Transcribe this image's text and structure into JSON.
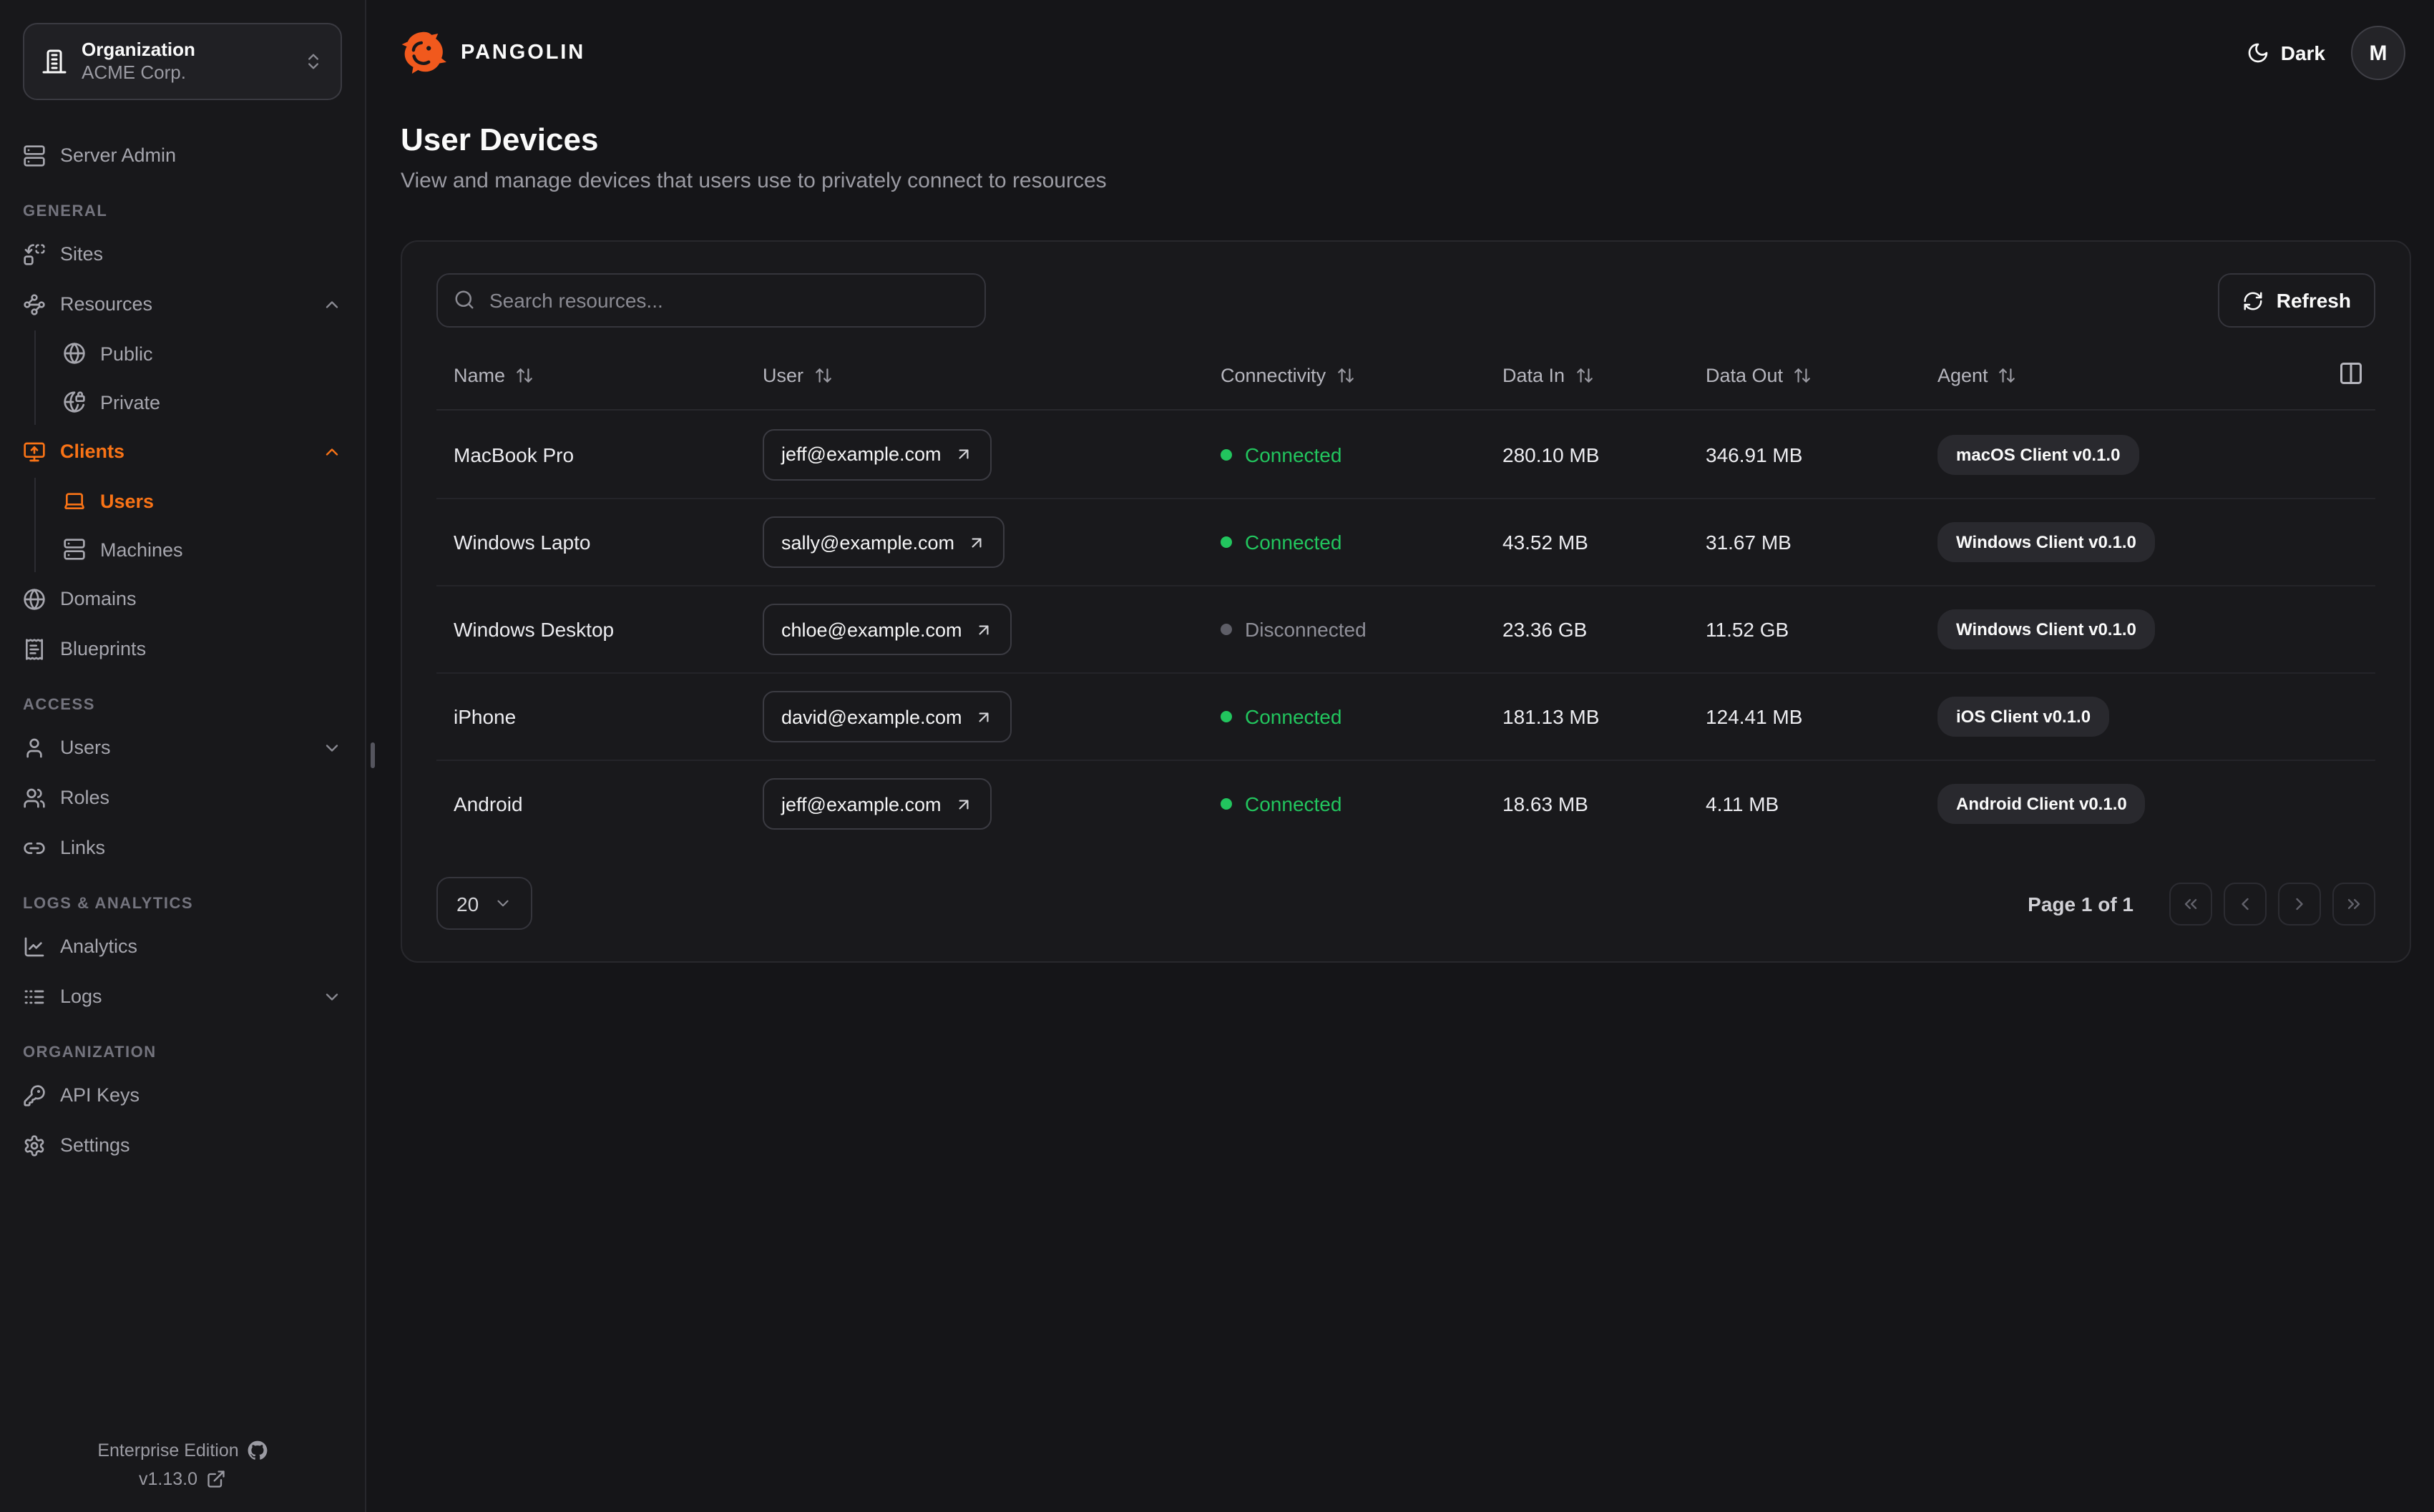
{
  "app": {
    "brand": "PANGOLIN",
    "theme_label": "Dark",
    "avatar_initial": "M"
  },
  "org_switcher": {
    "label": "Organization",
    "value": "ACME Corp."
  },
  "sidebar": {
    "server_admin": {
      "label": "Server Admin",
      "icon": "server"
    },
    "sections": [
      {
        "label": "GENERAL",
        "items": [
          {
            "label": "Sites",
            "icon": "sites"
          },
          {
            "label": "Resources",
            "icon": "waypoints",
            "chevron": "chevron-up",
            "children": [
              {
                "label": "Public",
                "icon": "globe"
              },
              {
                "label": "Private",
                "icon": "globe-lock"
              }
            ]
          },
          {
            "label": "Clients",
            "icon": "monitor-up",
            "chevron": "chevron-up",
            "active": true,
            "children": [
              {
                "label": "Users",
                "icon": "laptop",
                "active": true
              },
              {
                "label": "Machines",
                "icon": "server"
              }
            ]
          },
          {
            "label": "Domains",
            "icon": "globe"
          },
          {
            "label": "Blueprints",
            "icon": "receipt"
          }
        ]
      },
      {
        "label": "ACCESS",
        "items": [
          {
            "label": "Users",
            "icon": "user",
            "chevron": "chevron-down"
          },
          {
            "label": "Roles",
            "icon": "users"
          },
          {
            "label": "Links",
            "icon": "link"
          }
        ]
      },
      {
        "label": "LOGS & ANALYTICS",
        "items": [
          {
            "label": "Analytics",
            "icon": "chart-line"
          },
          {
            "label": "Logs",
            "icon": "logs",
            "chevron": "chevron-down"
          }
        ]
      },
      {
        "label": "ORGANIZATION",
        "items": [
          {
            "label": "API Keys",
            "icon": "key"
          },
          {
            "label": "Settings",
            "icon": "settings"
          }
        ]
      }
    ],
    "footer": {
      "edition": "Enterprise Edition",
      "version": "v1.13.0"
    }
  },
  "page": {
    "title": "User Devices",
    "subtitle": "View and manage devices that users use to privately connect to resources"
  },
  "toolbar": {
    "search_placeholder": "Search resources...",
    "refresh_label": "Refresh"
  },
  "table": {
    "columns": [
      "Name",
      "User",
      "Connectivity",
      "Data In",
      "Data Out",
      "Agent"
    ],
    "rows": [
      {
        "name": "MacBook Pro",
        "user": "jeff@example.com",
        "connectivity": "Connected",
        "connected": true,
        "data_in": "280.10 MB",
        "data_out": "346.91 MB",
        "agent": "macOS Client v0.1.0"
      },
      {
        "name": "Windows Lapto",
        "user": "sally@example.com",
        "connectivity": "Connected",
        "connected": true,
        "data_in": "43.52 MB",
        "data_out": "31.67 MB",
        "agent": "Windows Client v0.1.0"
      },
      {
        "name": "Windows Desktop",
        "user": "chloe@example.com",
        "connectivity": "Disconnected",
        "connected": false,
        "data_in": "23.36 GB",
        "data_out": "11.52 GB",
        "agent": "Windows Client v0.1.0"
      },
      {
        "name": "iPhone",
        "user": "david@example.com",
        "connectivity": "Connected",
        "connected": true,
        "data_in": "181.13 MB",
        "data_out": "124.41 MB",
        "agent": "iOS Client v0.1.0"
      },
      {
        "name": "Android",
        "user": "jeff@example.com",
        "connectivity": "Connected",
        "connected": true,
        "data_in": "18.63 MB",
        "data_out": "4.11 MB",
        "agent": "Android Client v0.1.0"
      }
    ]
  },
  "pagination": {
    "page_size": "20",
    "status": "Page 1 of 1",
    "buttons": [
      "chevrons-left",
      "chevron-left",
      "chevron-right",
      "chevrons-right"
    ]
  },
  "colors": {
    "accent_orange": "#f97316",
    "brand_orange": "#f1591d",
    "connected_green": "#22c55e",
    "disconnected_gray": "#8f8f98"
  }
}
